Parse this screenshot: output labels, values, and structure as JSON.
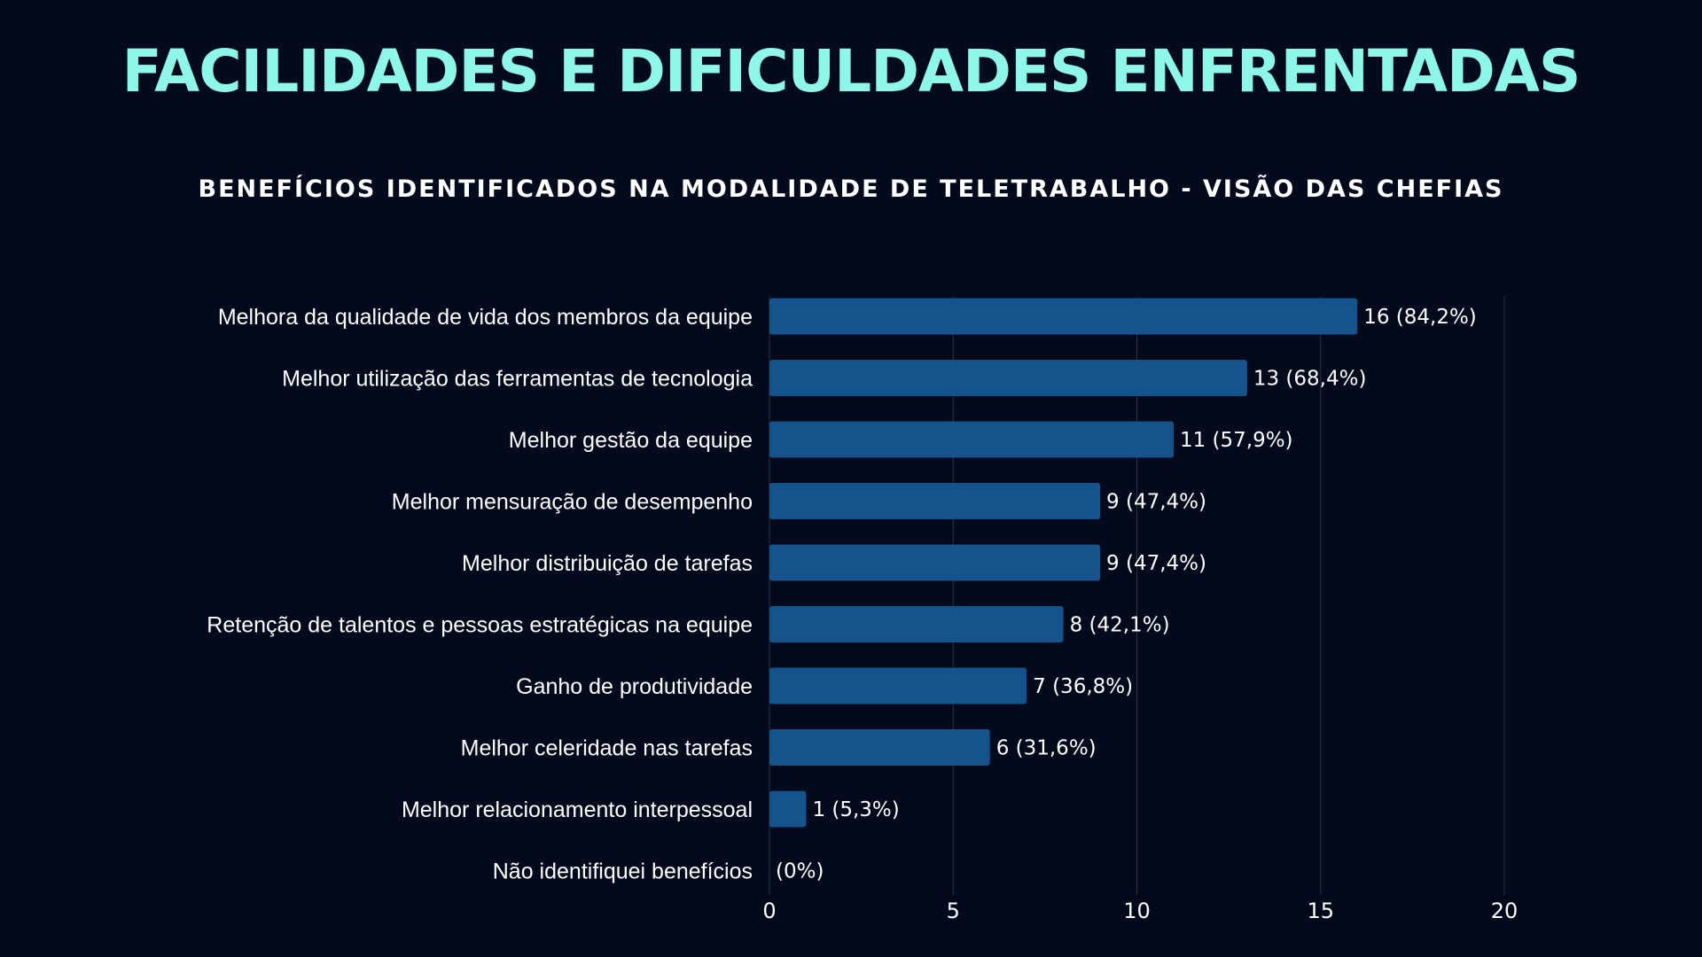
{
  "title": "FACILIDADES E DIFICULDADES ENFRENTADAS",
  "subtitle": "BENEFÍCIOS IDENTIFICADOS NA MODALIDADE DE TELETRABALHO - VISÃO DAS CHEFIAS",
  "colors": {
    "background": "#020a1b",
    "title": "#8ff7e6",
    "bar": "#15538c",
    "grid": "#2a3346",
    "text": "#ffffff"
  },
  "chart_data": {
    "type": "bar",
    "orientation": "horizontal",
    "categories": [
      "Melhora da qualidade de vida dos membros da equipe",
      "Melhor utilização das ferramentas de tecnologia",
      "Melhor gestão da equipe",
      "Melhor mensuração de desempenho",
      "Melhor distribuição de tarefas",
      "Retenção de talentos e pessoas estratégicas na equipe",
      "Ganho de produtividade",
      "Melhor celeridade nas tarefas",
      "Melhor relacionamento interpessoal",
      "Não identifiquei benefícios"
    ],
    "values": [
      16,
      13,
      11,
      9,
      9,
      8,
      7,
      6,
      1,
      0
    ],
    "data_labels": [
      "16 (84,2%)",
      "13 (68,4%)",
      "11 (57,9%)",
      "9 (47,4%)",
      "9 (47,4%)",
      "8 (42,1%)",
      "7 (36,8%)",
      "6 (31,6%)",
      "1 (5,3%)",
      "(0%)"
    ],
    "xlim": [
      0,
      20
    ],
    "xticks": [
      "0",
      "5",
      "10",
      "15",
      "20"
    ],
    "grid": true,
    "legend": "none"
  }
}
